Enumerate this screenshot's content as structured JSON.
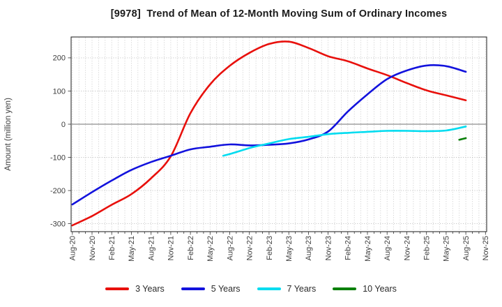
{
  "chart_data": {
    "type": "line",
    "title": "[9978]  Trend of Mean of 12-Month Moving Sum of Ordinary Incomes",
    "ylabel": "Amount (million yen)",
    "xlabel": "",
    "x_tick_labels": [
      "Aug-20",
      "Nov-20",
      "Feb-21",
      "May-21",
      "Aug-21",
      "Nov-21",
      "Feb-22",
      "May-22",
      "Aug-22",
      "Nov-22",
      "Feb-23",
      "May-23",
      "Aug-23",
      "Nov-23",
      "Feb-24",
      "May-24",
      "Aug-24",
      "Nov-24",
      "Feb-25",
      "May-25",
      "Aug-25",
      "Nov-25"
    ],
    "months_per_tick": 3,
    "x_month_count": 63,
    "ylim": [
      -324,
      263
    ],
    "yticks": [
      200,
      100,
      0,
      -100,
      -200,
      -300
    ],
    "grid": "dotted monthly vertical and 100-step horizontal, solid zero line",
    "legend_position": "bottom",
    "series": [
      {
        "name": "3 Years",
        "color": "#e8100c",
        "points": [
          [
            0,
            -305
          ],
          [
            3,
            -277
          ],
          [
            6,
            -243
          ],
          [
            9,
            -211
          ],
          [
            12,
            -163
          ],
          [
            15,
            -97
          ],
          [
            18,
            33
          ],
          [
            21,
            120
          ],
          [
            24,
            176
          ],
          [
            27,
            215
          ],
          [
            30,
            242
          ],
          [
            33,
            249
          ],
          [
            36,
            230
          ],
          [
            39,
            205
          ],
          [
            42,
            190
          ],
          [
            45,
            168
          ],
          [
            48,
            148
          ],
          [
            51,
            124
          ],
          [
            54,
            102
          ],
          [
            57,
            87
          ],
          [
            60,
            72
          ]
        ]
      },
      {
        "name": "5 Years",
        "color": "#1212dd",
        "points": [
          [
            0,
            -242
          ],
          [
            3,
            -205
          ],
          [
            6,
            -170
          ],
          [
            9,
            -138
          ],
          [
            12,
            -114
          ],
          [
            15,
            -95
          ],
          [
            18,
            -76
          ],
          [
            21,
            -68
          ],
          [
            24,
            -61
          ],
          [
            27,
            -64
          ],
          [
            30,
            -62
          ],
          [
            33,
            -58
          ],
          [
            36,
            -46
          ],
          [
            39,
            -22
          ],
          [
            42,
            38
          ],
          [
            45,
            90
          ],
          [
            48,
            136
          ],
          [
            51,
            162
          ],
          [
            54,
            177
          ],
          [
            57,
            175
          ],
          [
            60,
            158
          ]
        ]
      },
      {
        "name": "7 Years",
        "color": "#00dcf0",
        "points": [
          [
            23,
            -95
          ],
          [
            24,
            -90
          ],
          [
            27,
            -72
          ],
          [
            30,
            -58
          ],
          [
            33,
            -45
          ],
          [
            36,
            -38
          ],
          [
            39,
            -30
          ],
          [
            42,
            -26
          ],
          [
            45,
            -23
          ],
          [
            48,
            -20
          ],
          [
            51,
            -20
          ],
          [
            54,
            -21
          ],
          [
            57,
            -19
          ],
          [
            60,
            -7
          ]
        ]
      },
      {
        "name": "10 Years",
        "color": "#0b800b",
        "points": [
          [
            59,
            -47
          ],
          [
            60,
            -42
          ]
        ]
      }
    ]
  }
}
